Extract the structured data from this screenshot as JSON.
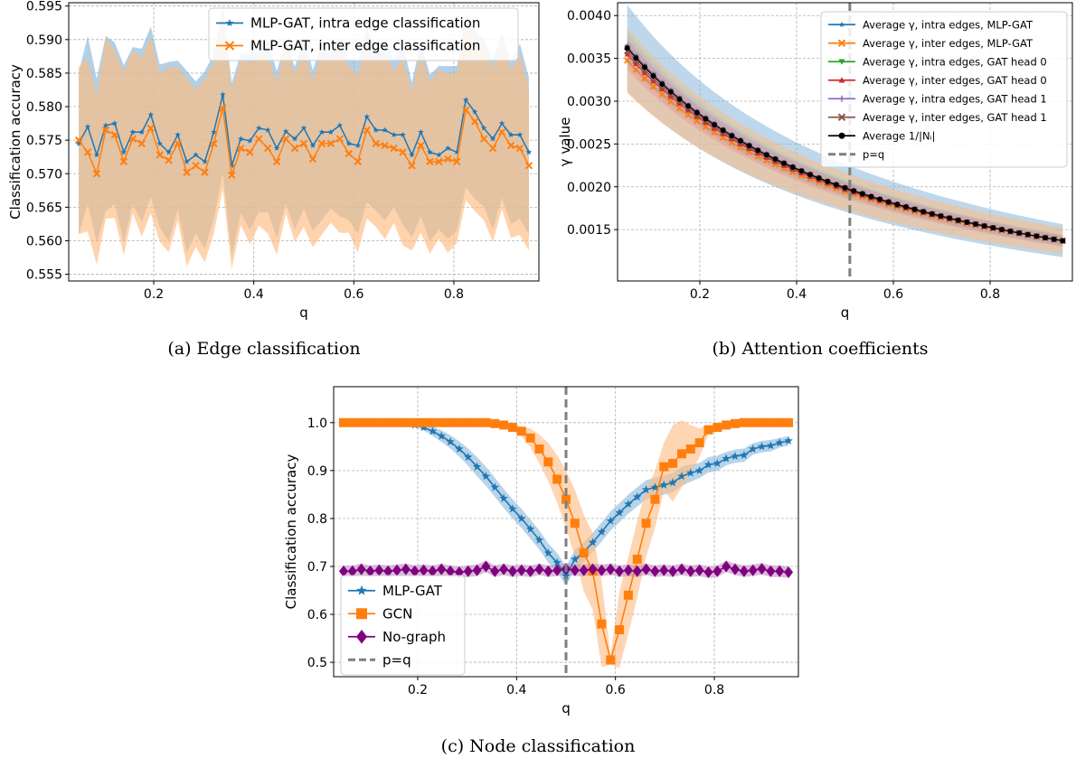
{
  "chart_data": [
    {
      "id": "a",
      "type": "line",
      "caption": "(a) Edge classification",
      "xlabel": "q",
      "ylabel": "Classification accuracy",
      "xlim": [
        0.03,
        0.97
      ],
      "ylim": [
        0.554,
        0.5955
      ],
      "xticks": [
        0.2,
        0.4,
        0.6,
        0.8
      ],
      "yticks": [
        0.555,
        0.56,
        0.565,
        0.57,
        0.575,
        0.58,
        0.585,
        0.59,
        0.595
      ],
      "grid": true,
      "legend_position": "top-right",
      "x_range": [
        0.05,
        0.95
      ],
      "n_points": 51,
      "series": [
        {
          "name": "MLP-GAT, intra edge classification",
          "color": "#1f77b4",
          "band_color": "#89b7d9",
          "marker": "star",
          "values": [
            0.5745,
            0.577,
            0.5728,
            0.5772,
            0.5775,
            0.5732,
            0.5762,
            0.5762,
            0.5788,
            0.5745,
            0.5732,
            0.5758,
            0.5718,
            0.5728,
            0.5718,
            0.5762,
            0.5818,
            0.5712,
            0.5752,
            0.5749,
            0.5768,
            0.5765,
            0.5738,
            0.5763,
            0.5752,
            0.5768,
            0.5742,
            0.5762,
            0.5762,
            0.5772,
            0.5745,
            0.5742,
            0.5785,
            0.5765,
            0.5765,
            0.5758,
            0.5758,
            0.5728,
            0.5762,
            0.5732,
            0.5728,
            0.5738,
            0.5732,
            0.581,
            0.5792,
            0.5768,
            0.5752,
            0.5775,
            0.5758,
            0.5758,
            0.5732
          ],
          "band_halfwidth": 0.0118
        },
        {
          "name": "MLP-GAT, inter edge classification",
          "color": "#ff7f0e",
          "band_color": "#ffbb80",
          "marker": "x",
          "values": [
            0.575,
            0.5732,
            0.57,
            0.5765,
            0.5758,
            0.5718,
            0.5752,
            0.5745,
            0.5768,
            0.5728,
            0.572,
            0.5745,
            0.5702,
            0.5712,
            0.5702,
            0.5745,
            0.5798,
            0.5698,
            0.5738,
            0.5732,
            0.5752,
            0.5738,
            0.5718,
            0.5752,
            0.5738,
            0.5745,
            0.5722,
            0.5745,
            0.5745,
            0.5752,
            0.573,
            0.5718,
            0.5765,
            0.5745,
            0.5742,
            0.5738,
            0.5732,
            0.5712,
            0.5742,
            0.5718,
            0.5718,
            0.5722,
            0.5718,
            0.5795,
            0.5778,
            0.5752,
            0.5738,
            0.5762,
            0.5742,
            0.5738,
            0.5712
          ],
          "band_halfwidth": 0.0122
        }
      ]
    },
    {
      "id": "b",
      "type": "line",
      "caption": "(b) Attention coefficients",
      "xlabel": "q",
      "ylabel": "γ value",
      "xlim": [
        0.03,
        0.97
      ],
      "ylim": [
        0.0009,
        0.00415
      ],
      "xticks": [
        0.2,
        0.4,
        0.6,
        0.8
      ],
      "yticks": [
        0.0015,
        0.002,
        0.0025,
        0.003,
        0.0035,
        0.004
      ],
      "grid": true,
      "legend_position": "top-right",
      "vline": {
        "x": 0.51,
        "label": "p=q",
        "color": "#7f7f7f"
      },
      "x_range": [
        0.05,
        0.95
      ],
      "n_points": 51,
      "model": "reciprocal: value = 1 / (1/0.00362 + (1/0.00137 - 1/0.00362) * (x - 0.05) / 0.9)",
      "endpoints": {
        "x0": 0.05,
        "y0": 0.00362,
        "x1": 0.95,
        "y1": 0.00137
      },
      "series": [
        {
          "name": "Average γ, intra edges, MLP-GAT",
          "color": "#1f77b4",
          "marker": "star",
          "band_rel": 0.14,
          "band_color": "#89b7d9"
        },
        {
          "name": "Average γ, inter edges, MLP-GAT",
          "color": "#ff7f0e",
          "marker": "x",
          "band_rel": 0.11,
          "band_color": "#ffbb80"
        },
        {
          "name": "Average γ, intra edges, GAT head 0",
          "color": "#2ca02c",
          "marker": "triangle-down",
          "band_rel": 0.05,
          "band_color": "#a9d9a9"
        },
        {
          "name": "Average γ, inter edges, GAT head 0",
          "color": "#d62728",
          "marker": "triangle-up",
          "band_rel": 0.05,
          "band_color": "#e99b9b"
        },
        {
          "name": "Average γ, intra edges, GAT head 1",
          "color": "#9467bd",
          "marker": "plus",
          "band_rel": 0.04,
          "band_color": "#c9b3de"
        },
        {
          "name": "Average γ, inter edges, GAT head 1",
          "color": "#8c564b",
          "marker": "x",
          "band_rel": 0.04,
          "band_color": "#c3a39c"
        },
        {
          "name": "Average 1/|Nᵢ|",
          "color": "#000000",
          "marker": "circle",
          "band_rel": 0
        }
      ],
      "legend_last": "p=q"
    },
    {
      "id": "c",
      "type": "line",
      "caption": "(c) Node classification",
      "xlabel": "q",
      "ylabel": "Classification accuracy",
      "xlim": [
        0.03,
        0.97
      ],
      "ylim": [
        0.47,
        1.075
      ],
      "xticks": [
        0.2,
        0.4,
        0.6,
        0.8
      ],
      "yticks": [
        0.5,
        0.6,
        0.7,
        0.8,
        0.9,
        1.0
      ],
      "grid": true,
      "legend_position": "bottom-left",
      "vline": {
        "x": 0.5,
        "label": "p=q",
        "color": "#7f7f7f"
      },
      "x_range": [
        0.05,
        0.95
      ],
      "n_points": 51,
      "series": [
        {
          "name": "MLP-GAT",
          "color": "#1f77b4",
          "band_color": "#89b7d9",
          "marker": "star",
          "values": [
            1.0,
            1.0,
            1.0,
            1.0,
            1.0,
            1.0,
            0.999,
            0.998,
            0.995,
            0.99,
            0.982,
            0.972,
            0.96,
            0.945,
            0.928,
            0.908,
            0.888,
            0.865,
            0.842,
            0.82,
            0.8,
            0.778,
            0.755,
            0.728,
            0.708,
            0.68,
            0.715,
            0.73,
            0.75,
            0.772,
            0.795,
            0.812,
            0.83,
            0.845,
            0.86,
            0.865,
            0.87,
            0.875,
            0.888,
            0.895,
            0.9,
            0.912,
            0.915,
            0.925,
            0.93,
            0.932,
            0.945,
            0.95,
            0.952,
            0.958,
            0.962
          ],
          "band": [
            0,
            0,
            0,
            0,
            0,
            0,
            0,
            0.002,
            0.004,
            0.006,
            0.01,
            0.012,
            0.014,
            0.016,
            0.018,
            0.02,
            0.02,
            0.02,
            0.02,
            0.02,
            0.02,
            0.02,
            0.02,
            0.02,
            0.02,
            0.02,
            0.02,
            0.02,
            0.02,
            0.02,
            0.02,
            0.02,
            0.02,
            0.02,
            0.02,
            0.02,
            0.02,
            0.02,
            0.02,
            0.018,
            0.016,
            0.016,
            0.016,
            0.014,
            0.014,
            0.014,
            0.012,
            0.012,
            0.012,
            0.01,
            0.01
          ]
        },
        {
          "name": "GCN",
          "color": "#ff7f0e",
          "band_color": "#ffbb80",
          "marker": "square",
          "values": [
            1.0,
            1.0,
            1.0,
            1.0,
            1.0,
            1.0,
            1.0,
            1.0,
            1.0,
            1.0,
            1.0,
            1.0,
            1.0,
            1.0,
            1.0,
            1.0,
            1.0,
            0.998,
            0.995,
            0.99,
            0.982,
            0.968,
            0.945,
            0.918,
            0.882,
            0.84,
            0.79,
            0.728,
            0.69,
            0.58,
            0.505,
            0.568,
            0.64,
            0.715,
            0.79,
            0.84,
            0.908,
            0.915,
            0.935,
            0.945,
            0.958,
            0.985,
            0.99,
            0.995,
            0.998,
            1.0,
            1.0,
            1.0,
            1.0,
            1.0,
            1.0
          ],
          "band": [
            0,
            0,
            0,
            0,
            0,
            0,
            0,
            0,
            0,
            0,
            0,
            0,
            0,
            0,
            0,
            0,
            0,
            0.002,
            0.004,
            0.006,
            0.01,
            0.02,
            0.03,
            0.04,
            0.05,
            0.06,
            0.07,
            0.08,
            0.08,
            0.09,
            0.01,
            0.08,
            0.08,
            0.08,
            0.07,
            0.06,
            0.05,
            0.08,
            0.07,
            0.05,
            0.03,
            0.01,
            0.005,
            0.003,
            0.002,
            0,
            0,
            0,
            0,
            0,
            0
          ]
        },
        {
          "name": "No-graph",
          "color": "#800080",
          "band_color": "#c08fc0",
          "marker": "diamond",
          "values": [
            0.69,
            0.69,
            0.694,
            0.69,
            0.692,
            0.69,
            0.692,
            0.694,
            0.69,
            0.692,
            0.69,
            0.694,
            0.69,
            0.688,
            0.69,
            0.692,
            0.7,
            0.69,
            0.694,
            0.69,
            0.692,
            0.69,
            0.694,
            0.69,
            0.692,
            0.695,
            0.692,
            0.692,
            0.694,
            0.692,
            0.694,
            0.69,
            0.692,
            0.69,
            0.694,
            0.69,
            0.692,
            0.69,
            0.694,
            0.69,
            0.692,
            0.688,
            0.69,
            0.7,
            0.694,
            0.69,
            0.692,
            0.695,
            0.69,
            0.69,
            0.688
          ],
          "band": [
            0.012,
            0.012,
            0.012,
            0.012,
            0.012,
            0.012,
            0.012,
            0.012,
            0.012,
            0.012,
            0.012,
            0.012,
            0.012,
            0.012,
            0.012,
            0.012,
            0.012,
            0.012,
            0.012,
            0.012,
            0.012,
            0.012,
            0.012,
            0.012,
            0.012,
            0.012,
            0.012,
            0.012,
            0.012,
            0.012,
            0.012,
            0.012,
            0.012,
            0.012,
            0.012,
            0.012,
            0.012,
            0.012,
            0.012,
            0.012,
            0.012,
            0.012,
            0.012,
            0.012,
            0.012,
            0.012,
            0.012,
            0.012,
            0.012,
            0.012,
            0.012
          ]
        }
      ],
      "legend_last": "p=q"
    }
  ]
}
